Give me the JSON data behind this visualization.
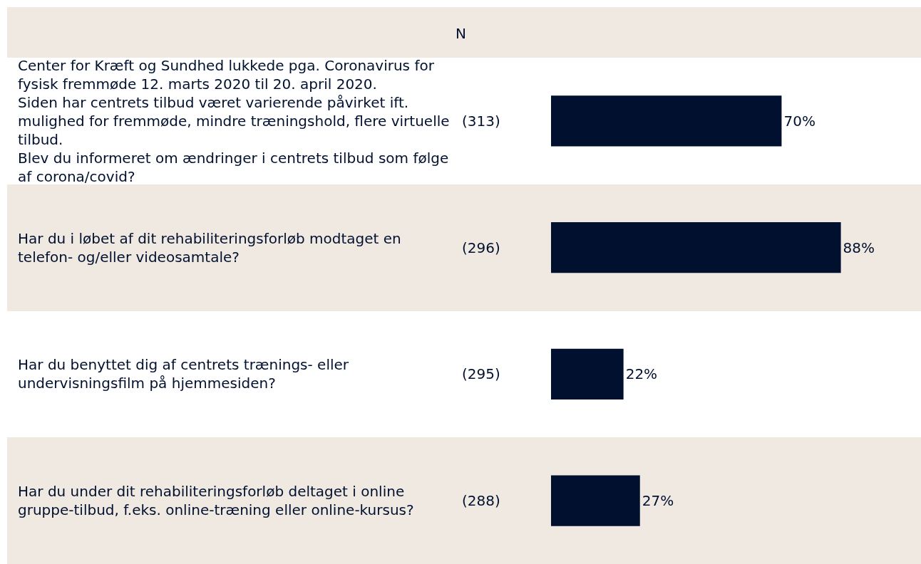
{
  "chart_data": {
    "type": "bar",
    "orientation": "horizontal",
    "categories": [
      "Center for Kræft og Sundhed lukkede pga. Coronavirus for fysisk fremmøde 12. marts 2020 til 20. april 2020.\nSiden har centrets tilbud været varierende påvirket ift. mulighed for fremmøde, mindre træningshold, flere virtuelle tilbud.\nBlev du informeret om ændringer i centrets tilbud som følge af corona/covid?",
      "Har du i løbet af dit rehabiliteringsforløb modtaget en telefon- og/eller videosamtale?",
      "Har du benyttet dig af centrets trænings- eller undervisningsfilm på hjemmesiden?",
      "Har du under dit rehabiliteringsforløb deltaget i online gruppe-tilbud, f.eks. online-træning eller online-kursus?"
    ],
    "values": [
      70,
      88,
      22,
      27
    ],
    "value_labels": [
      "70%",
      "88%",
      "22%",
      "27%"
    ],
    "color": "#00102e",
    "annotations": [
      "N",
      "(313)",
      "(296)",
      "(295)",
      "(288)"
    ]
  }
}
